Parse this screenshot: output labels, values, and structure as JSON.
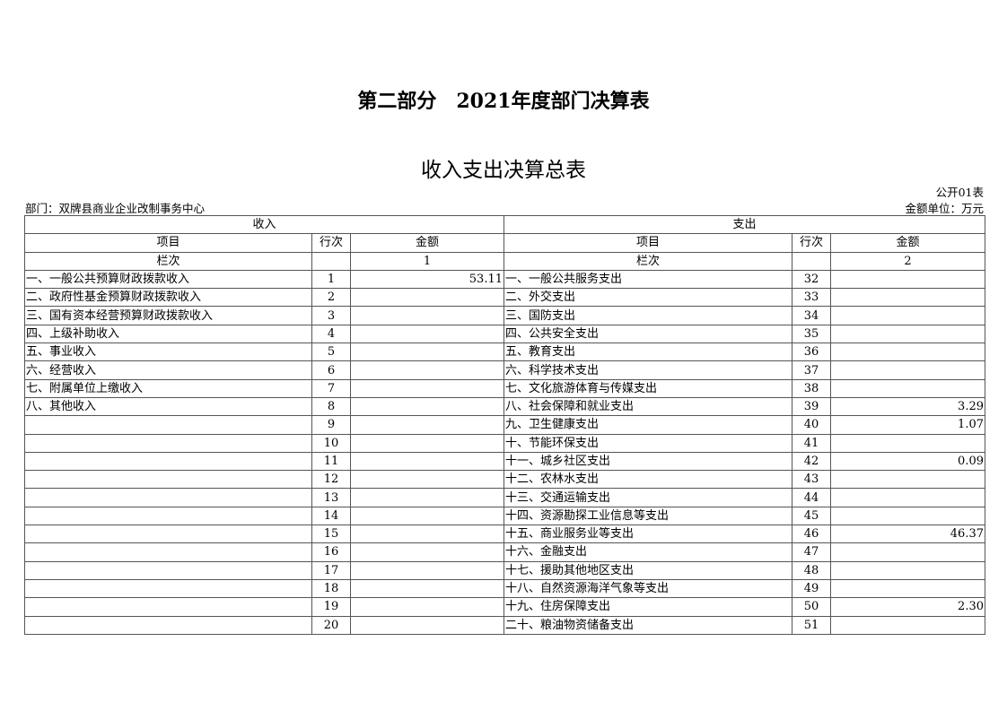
{
  "title": "第二部分　2021年度部门决算表",
  "subtitle": "收入支出决算总表",
  "form_code": "公开01表",
  "department": "部门：双牌县商业企业改制事务中心",
  "unit": "金额单位：万元",
  "table": {
    "income_header": "收入",
    "expense_header": "支出",
    "col_item": "项目",
    "col_line": "行次",
    "col_amount": "金额",
    "column_index_label": "栏次",
    "income_column_index": "1",
    "expense_column_index": "2",
    "rows": [
      {
        "income_item": "一、一般公共预算财政拨款收入",
        "income_line": "1",
        "income_amount": "53.11",
        "expense_item": "一、一般公共服务支出",
        "expense_line": "32",
        "expense_amount": ""
      },
      {
        "income_item": "二、政府性基金预算财政拨款收入",
        "income_line": "2",
        "income_amount": "",
        "expense_item": "二、外交支出",
        "expense_line": "33",
        "expense_amount": ""
      },
      {
        "income_item": "三、国有资本经营预算财政拨款收入",
        "income_line": "3",
        "income_amount": "",
        "expense_item": "三、国防支出",
        "expense_line": "34",
        "expense_amount": ""
      },
      {
        "income_item": "四、上级补助收入",
        "income_line": "4",
        "income_amount": "",
        "expense_item": "四、公共安全支出",
        "expense_line": "35",
        "expense_amount": ""
      },
      {
        "income_item": "五、事业收入",
        "income_line": "5",
        "income_amount": "",
        "expense_item": "五、教育支出",
        "expense_line": "36",
        "expense_amount": ""
      },
      {
        "income_item": "六、经营收入",
        "income_line": "6",
        "income_amount": "",
        "expense_item": "六、科学技术支出",
        "expense_line": "37",
        "expense_amount": ""
      },
      {
        "income_item": "七、附属单位上缴收入",
        "income_line": "7",
        "income_amount": "",
        "expense_item": "七、文化旅游体育与传媒支出",
        "expense_line": "38",
        "expense_amount": ""
      },
      {
        "income_item": "八、其他收入",
        "income_line": "8",
        "income_amount": "",
        "expense_item": "八、社会保障和就业支出",
        "expense_line": "39",
        "expense_amount": "3.29"
      },
      {
        "income_item": "",
        "income_line": "9",
        "income_amount": "",
        "expense_item": "九、卫生健康支出",
        "expense_line": "40",
        "expense_amount": "1.07"
      },
      {
        "income_item": "",
        "income_line": "10",
        "income_amount": "",
        "expense_item": "十、节能环保支出",
        "expense_line": "41",
        "expense_amount": ""
      },
      {
        "income_item": "",
        "income_line": "11",
        "income_amount": "",
        "expense_item": "十一、城乡社区支出",
        "expense_line": "42",
        "expense_amount": "0.09"
      },
      {
        "income_item": "",
        "income_line": "12",
        "income_amount": "",
        "expense_item": "十二、农林水支出",
        "expense_line": "43",
        "expense_amount": ""
      },
      {
        "income_item": "",
        "income_line": "13",
        "income_amount": "",
        "expense_item": "十三、交通运输支出",
        "expense_line": "44",
        "expense_amount": ""
      },
      {
        "income_item": "",
        "income_line": "14",
        "income_amount": "",
        "expense_item": "十四、资源勘探工业信息等支出",
        "expense_line": "45",
        "expense_amount": ""
      },
      {
        "income_item": "",
        "income_line": "15",
        "income_amount": "",
        "expense_item": "十五、商业服务业等支出",
        "expense_line": "46",
        "expense_amount": "46.37"
      },
      {
        "income_item": "",
        "income_line": "16",
        "income_amount": "",
        "expense_item": "十六、金融支出",
        "expense_line": "47",
        "expense_amount": ""
      },
      {
        "income_item": "",
        "income_line": "17",
        "income_amount": "",
        "expense_item": "十七、援助其他地区支出",
        "expense_line": "48",
        "expense_amount": ""
      },
      {
        "income_item": "",
        "income_line": "18",
        "income_amount": "",
        "expense_item": "十八、自然资源海洋气象等支出",
        "expense_line": "49",
        "expense_amount": ""
      },
      {
        "income_item": "",
        "income_line": "19",
        "income_amount": "",
        "expense_item": "十九、住房保障支出",
        "expense_line": "50",
        "expense_amount": "2.30"
      },
      {
        "income_item": "",
        "income_line": "20",
        "income_amount": "",
        "expense_item": "二十、粮油物资储备支出",
        "expense_line": "51",
        "expense_amount": ""
      }
    ]
  }
}
